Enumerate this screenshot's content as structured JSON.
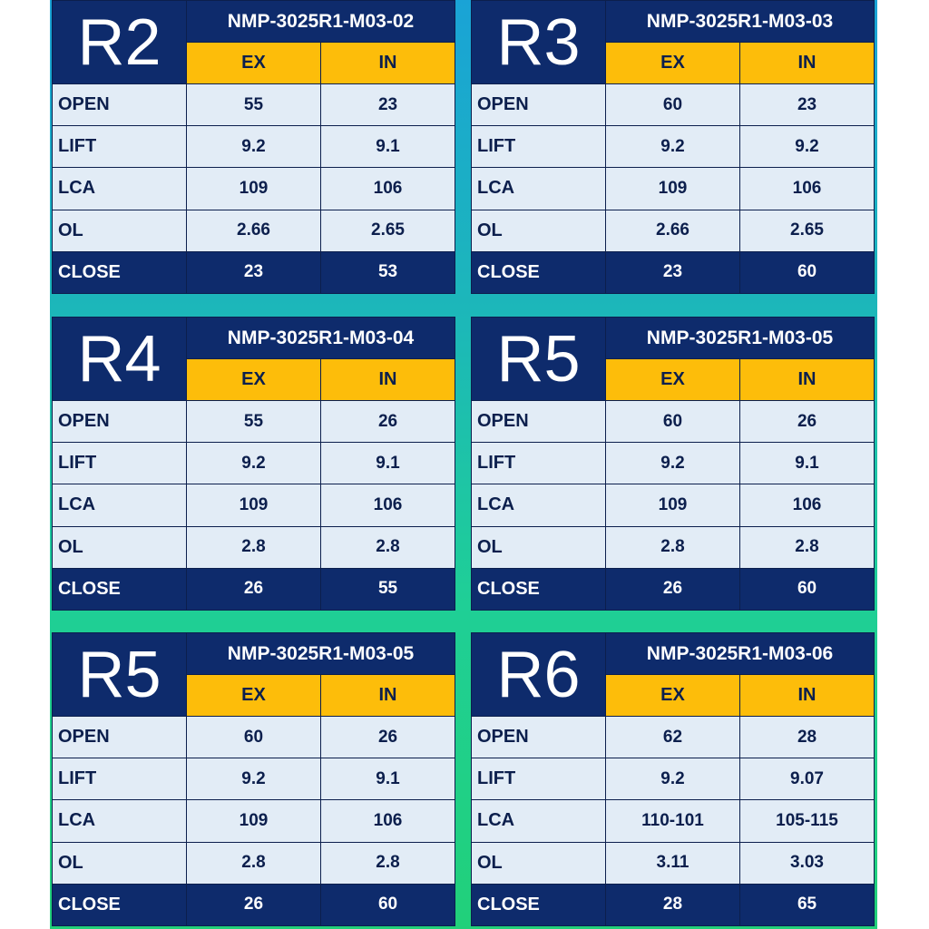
{
  "panels": [
    {
      "badge": "R2",
      "model": "NMP-3025R1-M03-02",
      "ex_label": "EX",
      "in_label": "IN",
      "rows": [
        {
          "label": "OPEN",
          "ex": "55",
          "in": "23"
        },
        {
          "label": "LIFT",
          "ex": "9.2",
          "in": "9.1"
        },
        {
          "label": "LCA",
          "ex": "109",
          "in": "106"
        },
        {
          "label": "OL",
          "ex": "2.66",
          "in": "2.65"
        },
        {
          "label": "CLOSE",
          "ex": "23",
          "in": "53"
        }
      ]
    },
    {
      "badge": "R3",
      "model": "NMP-3025R1-M03-03",
      "ex_label": "EX",
      "in_label": "IN",
      "rows": [
        {
          "label": "OPEN",
          "ex": "60",
          "in": "23"
        },
        {
          "label": "LIFT",
          "ex": "9.2",
          "in": "9.2"
        },
        {
          "label": "LCA",
          "ex": "109",
          "in": "106"
        },
        {
          "label": "OL",
          "ex": "2.66",
          "in": "2.65"
        },
        {
          "label": "CLOSE",
          "ex": "23",
          "in": "60"
        }
      ]
    },
    {
      "badge": "R4",
      "model": "NMP-3025R1-M03-04",
      "ex_label": "EX",
      "in_label": "IN",
      "rows": [
        {
          "label": "OPEN",
          "ex": "55",
          "in": "26"
        },
        {
          "label": "LIFT",
          "ex": "9.2",
          "in": "9.1"
        },
        {
          "label": "LCA",
          "ex": "109",
          "in": "106"
        },
        {
          "label": "OL",
          "ex": "2.8",
          "in": "2.8"
        },
        {
          "label": "CLOSE",
          "ex": "26",
          "in": "55"
        }
      ]
    },
    {
      "badge": "R5",
      "model": "NMP-3025R1-M03-05",
      "ex_label": "EX",
      "in_label": "IN",
      "rows": [
        {
          "label": "OPEN",
          "ex": "60",
          "in": "26"
        },
        {
          "label": "LIFT",
          "ex": "9.2",
          "in": "9.1"
        },
        {
          "label": "LCA",
          "ex": "109",
          "in": "106"
        },
        {
          "label": "OL",
          "ex": "2.8",
          "in": "2.8"
        },
        {
          "label": "CLOSE",
          "ex": "26",
          "in": "60"
        }
      ]
    },
    {
      "badge": "R5",
      "model": "NMP-3025R1-M03-05",
      "ex_label": "EX",
      "in_label": "IN",
      "rows": [
        {
          "label": "OPEN",
          "ex": "60",
          "in": "26"
        },
        {
          "label": "LIFT",
          "ex": "9.2",
          "in": "9.1"
        },
        {
          "label": "LCA",
          "ex": "109",
          "in": "106"
        },
        {
          "label": "OL",
          "ex": "2.8",
          "in": "2.8"
        },
        {
          "label": "CLOSE",
          "ex": "26",
          "in": "60"
        }
      ]
    },
    {
      "badge": "R6",
      "model": "NMP-3025R1-M03-06",
      "ex_label": "EX",
      "in_label": "IN",
      "rows": [
        {
          "label": "OPEN",
          "ex": "62",
          "in": "28"
        },
        {
          "label": "LIFT",
          "ex": "9.2",
          "in": "9.07"
        },
        {
          "label": "LCA",
          "ex": "110-101",
          "in": "105-115"
        },
        {
          "label": "OL",
          "ex": "3.11",
          "in": "3.03"
        },
        {
          "label": "CLOSE",
          "ex": "28",
          "in": "65"
        }
      ]
    }
  ],
  "colors": {
    "navy": "#0e2b6c",
    "amber": "#fdbd0a",
    "cell": "#e2ecf6",
    "background_top": "#1aa3d6",
    "background_bottom": "#21d07a"
  }
}
